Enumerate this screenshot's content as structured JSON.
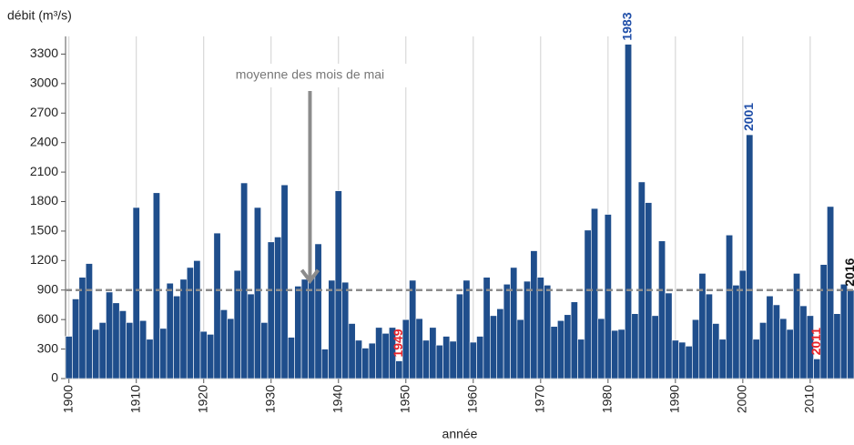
{
  "chart_data": {
    "type": "bar",
    "y_label": "débit (m³/s)",
    "x_label": "année",
    "x": [
      1900,
      1901,
      1902,
      1903,
      1904,
      1905,
      1906,
      1907,
      1908,
      1909,
      1910,
      1911,
      1912,
      1913,
      1914,
      1915,
      1916,
      1917,
      1918,
      1919,
      1920,
      1921,
      1922,
      1923,
      1924,
      1925,
      1926,
      1927,
      1928,
      1929,
      1930,
      1931,
      1932,
      1933,
      1934,
      1935,
      1936,
      1937,
      1938,
      1939,
      1940,
      1941,
      1942,
      1943,
      1944,
      1945,
      1946,
      1947,
      1948,
      1949,
      1950,
      1951,
      1952,
      1953,
      1954,
      1955,
      1956,
      1957,
      1958,
      1959,
      1960,
      1961,
      1962,
      1963,
      1964,
      1965,
      1966,
      1967,
      1968,
      1969,
      1970,
      1971,
      1972,
      1973,
      1974,
      1975,
      1976,
      1977,
      1978,
      1979,
      1980,
      1981,
      1982,
      1983,
      1984,
      1985,
      1986,
      1987,
      1988,
      1989,
      1990,
      1991,
      1992,
      1993,
      1994,
      1995,
      1996,
      1997,
      1998,
      1999,
      2000,
      2001,
      2002,
      2003,
      2004,
      2005,
      2006,
      2007,
      2008,
      2009,
      2010,
      2011,
      2012,
      2013,
      2014,
      2015,
      2016
    ],
    "values": [
      430,
      810,
      1030,
      1170,
      500,
      570,
      880,
      770,
      690,
      570,
      1740,
      590,
      400,
      1890,
      510,
      970,
      840,
      1010,
      1130,
      1200,
      480,
      450,
      1480,
      700,
      610,
      1100,
      1990,
      860,
      1740,
      570,
      1390,
      1440,
      1970,
      420,
      940,
      1010,
      1030,
      1370,
      300,
      1000,
      1910,
      980,
      560,
      390,
      310,
      360,
      520,
      460,
      520,
      180,
      600,
      1000,
      610,
      390,
      520,
      340,
      430,
      380,
      860,
      1000,
      370,
      430,
      1030,
      640,
      710,
      960,
      1130,
      600,
      990,
      1300,
      1030,
      950,
      530,
      590,
      650,
      780,
      400,
      1510,
      1730,
      610,
      1670,
      490,
      500,
      3400,
      660,
      2000,
      1790,
      640,
      1400,
      870,
      390,
      370,
      330,
      600,
      1070,
      860,
      560,
      400,
      1460,
      950,
      1100,
      2480,
      400,
      570,
      840,
      750,
      610,
      500,
      1070,
      740,
      640,
      200,
      1160,
      1750,
      660,
      960,
      900
    ],
    "color": "#1f4e8c",
    "xlim": [
      1899.5,
      2016.5
    ],
    "xticks": [
      1900,
      1910,
      1920,
      1930,
      1940,
      1950,
      1960,
      1970,
      1980,
      1990,
      2000,
      2010
    ],
    "ylim": [
      0,
      3480
    ],
    "yticks": [
      0,
      300,
      600,
      900,
      1200,
      1500,
      1800,
      2100,
      2400,
      2700,
      3000,
      3300
    ],
    "grid": true,
    "reference_line": {
      "value": 900,
      "label": "moyenne des mois de mai",
      "color": "#8c8c8c"
    },
    "annotations": [
      {
        "text": "1949",
        "x": 1949,
        "color": "#e8242a"
      },
      {
        "text": "1983",
        "x": 1983,
        "color": "#1f4ea8"
      },
      {
        "text": "2001",
        "x": 2001,
        "color": "#1f4ea8"
      },
      {
        "text": "2011",
        "x": 2011,
        "color": "#e8242a"
      },
      {
        "text": "2016",
        "x": 2016,
        "color": "#111111"
      }
    ]
  }
}
